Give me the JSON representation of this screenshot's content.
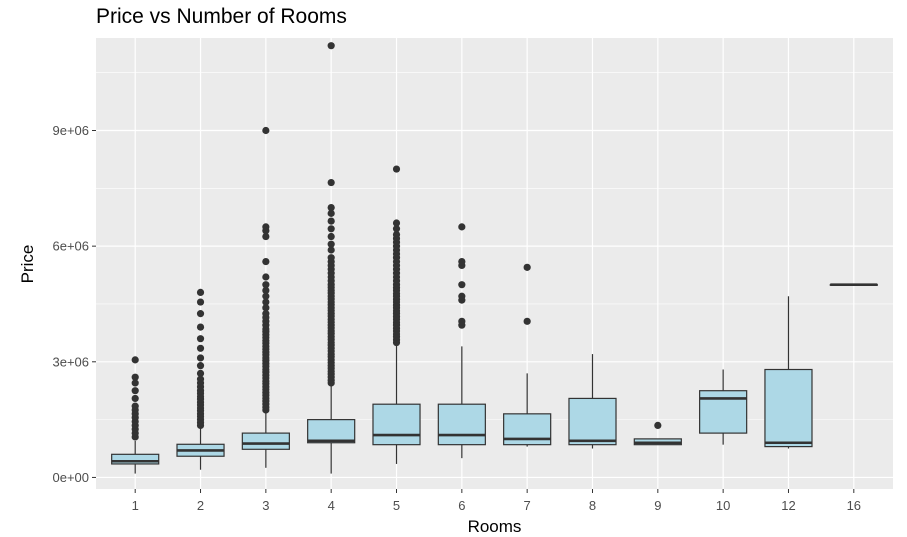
{
  "chart_data": {
    "type": "boxplot",
    "title": "Price vs Number of Rooms",
    "xlabel": "Rooms",
    "ylabel": "Price",
    "ylim": [
      -300000,
      11400000
    ],
    "yticks": [
      {
        "value": 0,
        "label": "0e+00"
      },
      {
        "value": 3000000,
        "label": "3e+06"
      },
      {
        "value": 6000000,
        "label": "6e+06"
      },
      {
        "value": 9000000,
        "label": "9e+06"
      }
    ],
    "categories": [
      "1",
      "2",
      "3",
      "4",
      "5",
      "6",
      "7",
      "8",
      "9",
      "10",
      "12",
      "16"
    ],
    "grid": true,
    "legend": "none",
    "colors": {
      "panel_bg": "#ebebeb",
      "grid_major": "#ffffff",
      "box_fill": "#add8e6",
      "box_stroke": "#333333",
      "outlier": "#333333",
      "tick_text": "#4d4d4d"
    },
    "boxes": [
      {
        "category": "1",
        "min": 100000,
        "q1": 350000,
        "median": 420000,
        "q3": 600000,
        "max": 950000,
        "outliers": [
          1050000,
          1150000,
          1250000,
          1350000,
          1450000,
          1550000,
          1650000,
          1750000,
          1850000,
          2050000,
          2250000,
          2450000,
          2600000,
          3050000
        ]
      },
      {
        "category": "2",
        "min": 200000,
        "q1": 550000,
        "median": 700000,
        "q3": 860000,
        "max": 1300000,
        "outliers": [
          1350000,
          1420000,
          1500000,
          1580000,
          1650000,
          1730000,
          1800000,
          1880000,
          1950000,
          2030000,
          2100000,
          2180000,
          2250000,
          2350000,
          2450000,
          2550000,
          2700000,
          2900000,
          3100000,
          3350000,
          3600000,
          3900000,
          4250000,
          4550000,
          4800000
        ]
      },
      {
        "category": "3",
        "min": 250000,
        "q1": 730000,
        "median": 880000,
        "q3": 1150000,
        "max": 1700000,
        "outliers": [
          1750000,
          1820000,
          1900000,
          1980000,
          2050000,
          2130000,
          2200000,
          2280000,
          2350000,
          2430000,
          2500000,
          2580000,
          2650000,
          2730000,
          2800000,
          2880000,
          2950000,
          3030000,
          3100000,
          3180000,
          3250000,
          3330000,
          3400000,
          3480000,
          3550000,
          3630000,
          3700000,
          3780000,
          3850000,
          3950000,
          4050000,
          4150000,
          4250000,
          4400000,
          4550000,
          4700000,
          4850000,
          5000000,
          5200000,
          5600000,
          6250000,
          6400000,
          6500000,
          9000000
        ]
      },
      {
        "category": "4",
        "min": 100000,
        "q1": 900000,
        "median": 950000,
        "q3": 1500000,
        "max": 2400000,
        "outliers": [
          2450000,
          2520000,
          2600000,
          2680000,
          2750000,
          2830000,
          2900000,
          2980000,
          3050000,
          3130000,
          3200000,
          3280000,
          3350000,
          3430000,
          3500000,
          3580000,
          3650000,
          3730000,
          3800000,
          3880000,
          3950000,
          4030000,
          4100000,
          4180000,
          4250000,
          4330000,
          4400000,
          4480000,
          4550000,
          4630000,
          4700000,
          4780000,
          4850000,
          4930000,
          5000000,
          5100000,
          5200000,
          5300000,
          5400000,
          5500000,
          5600000,
          5700000,
          5900000,
          6050000,
          6250000,
          6450000,
          6650000,
          6850000,
          7000000,
          7650000,
          11200000
        ]
      },
      {
        "category": "5",
        "min": 350000,
        "q1": 850000,
        "median": 1100000,
        "q3": 1900000,
        "max": 3450000,
        "outliers": [
          3500000,
          3570000,
          3650000,
          3720000,
          3800000,
          3870000,
          3950000,
          4020000,
          4100000,
          4170000,
          4250000,
          4320000,
          4400000,
          4470000,
          4550000,
          4620000,
          4700000,
          4770000,
          4850000,
          4920000,
          5000000,
          5100000,
          5200000,
          5300000,
          5400000,
          5500000,
          5600000,
          5700000,
          5800000,
          5900000,
          6000000,
          6100000,
          6200000,
          6300000,
          6450000,
          6600000,
          8000000
        ]
      },
      {
        "category": "6",
        "min": 500000,
        "q1": 850000,
        "median": 1100000,
        "q3": 1900000,
        "max": 3400000,
        "outliers": [
          3950000,
          4050000,
          4600000,
          4700000,
          5000000,
          5500000,
          5600000,
          6500000
        ]
      },
      {
        "category": "7",
        "min": 800000,
        "q1": 850000,
        "median": 1000000,
        "q3": 1650000,
        "max": 2700000,
        "outliers": [
          4050000,
          5450000
        ]
      },
      {
        "category": "8",
        "min": 750000,
        "q1": 850000,
        "median": 950000,
        "q3": 2050000,
        "max": 3200000,
        "outliers": []
      },
      {
        "category": "9",
        "min": 850000,
        "q1": 850000,
        "median": 900000,
        "q3": 1000000,
        "max": 1000000,
        "outliers": [
          1350000
        ]
      },
      {
        "category": "10",
        "min": 850000,
        "q1": 1150000,
        "median": 2050000,
        "q3": 2250000,
        "max": 2800000,
        "outliers": []
      },
      {
        "category": "12",
        "min": 750000,
        "q1": 800000,
        "median": 900000,
        "q3": 2800000,
        "max": 4700000,
        "outliers": []
      },
      {
        "category": "16",
        "min": 5000000,
        "q1": 5000000,
        "median": 5000000,
        "q3": 5000000,
        "max": 5000000,
        "outliers": []
      }
    ]
  }
}
